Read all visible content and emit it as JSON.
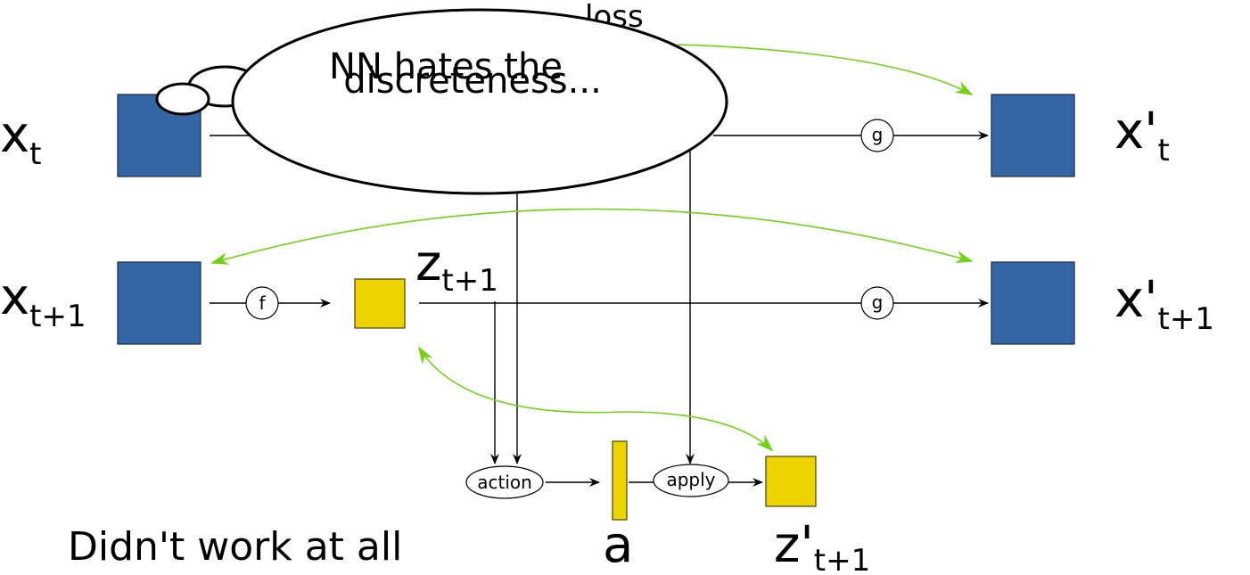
{
  "labels": {
    "x_t": {
      "base": "x",
      "sub": "t"
    },
    "x_t1": {
      "base": "x",
      "sub": "t+1"
    },
    "xp_t": {
      "base": "x'",
      "sub": "t"
    },
    "xp_t1": {
      "base": "x'",
      "sub": "t+1"
    },
    "z_t1": {
      "base": "z",
      "sub": "t+1"
    },
    "zp_t1": {
      "base": "z'",
      "sub": "t+1"
    },
    "a": "a",
    "loss": "loss"
  },
  "operators": {
    "f": "f",
    "g_top": "g",
    "g_bottom": "g",
    "action": "action",
    "apply": "apply"
  },
  "thought_bubble": {
    "line1": "NN hates the",
    "line2": "discreteness..."
  },
  "caption": "Didn't work at all",
  "colors": {
    "observation": "#3465a4",
    "latent": "#edd400",
    "loss_arrow": "#73d216",
    "line": "#000000"
  }
}
